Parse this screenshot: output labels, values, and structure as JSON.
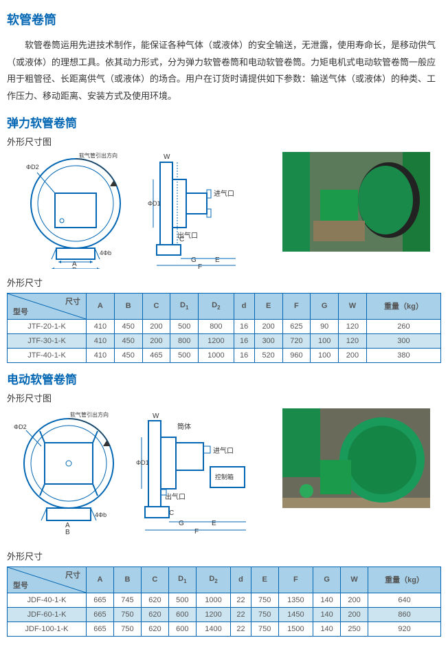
{
  "title_main": "软管卷筒",
  "intro": "软管卷筒运用先进技术制作，能保证各种气体（或液体）的安全输送，无泄露，使用寿命长，是移动供气（或液体）的理想工具。依其动力形式，分为弹力软管卷筒和电动软管卷筒。力矩电机式电动软管卷筒一般应用于粗管径、长距离供气（或液体）的场合。用户在订货时请提供如下参数：输送气体（或液体）的种类、工作压力、移动距离、安装方式及使用环境。",
  "section1_title": "弹力软管卷筒",
  "section2_title": "电动软管卷筒",
  "label_shape": "外形尺寸图",
  "label_dim": "外形尺寸",
  "hdr_size": "尺寸",
  "hdr_model": "型号",
  "cols": [
    "A",
    "B",
    "C",
    "D",
    "D",
    "d",
    "E",
    "F",
    "G",
    "W",
    "重量（kg）"
  ],
  "col_sub": [
    "",
    "",
    "",
    "1",
    "2",
    "",
    "",
    "",
    "",
    "",
    ""
  ],
  "t1": {
    "rows": [
      {
        "m": "JTF-20-1-K",
        "v": [
          "410",
          "450",
          "200",
          "500",
          "800",
          "16",
          "200",
          "625",
          "90",
          "120",
          "260"
        ],
        "hl": false
      },
      {
        "m": "JTF-30-1-K",
        "v": [
          "410",
          "450",
          "200",
          "800",
          "1200",
          "16",
          "300",
          "720",
          "100",
          "120",
          "300"
        ],
        "hl": true
      },
      {
        "m": "JTF-40-1-K",
        "v": [
          "410",
          "450",
          "465",
          "500",
          "1000",
          "16",
          "520",
          "960",
          "100",
          "200",
          "380"
        ],
        "hl": false
      }
    ]
  },
  "t2": {
    "rows": [
      {
        "m": "JDF-40-1-K",
        "v": [
          "665",
          "745",
          "620",
          "500",
          "1000",
          "22",
          "750",
          "1350",
          "140",
          "200",
          "640"
        ],
        "hl": false
      },
      {
        "m": "JDF-60-1-K",
        "v": [
          "665",
          "750",
          "620",
          "600",
          "1200",
          "22",
          "750",
          "1450",
          "140",
          "200",
          "860"
        ],
        "hl": true
      },
      {
        "m": "JDF-100-1-K",
        "v": [
          "665",
          "750",
          "620",
          "600",
          "1400",
          "22",
          "750",
          "1500",
          "140",
          "250",
          "920"
        ],
        "hl": false
      }
    ]
  },
  "diag_labels": {
    "jqk": "进气口",
    "cqk": "出气口",
    "tt": "筒体",
    "kzx": "控制箱",
    "arrow": "软气管引出方向"
  },
  "colors": {
    "hdr_bg": "#a8d0e8",
    "border": "#0066b3",
    "hl": "#cce4f0"
  }
}
